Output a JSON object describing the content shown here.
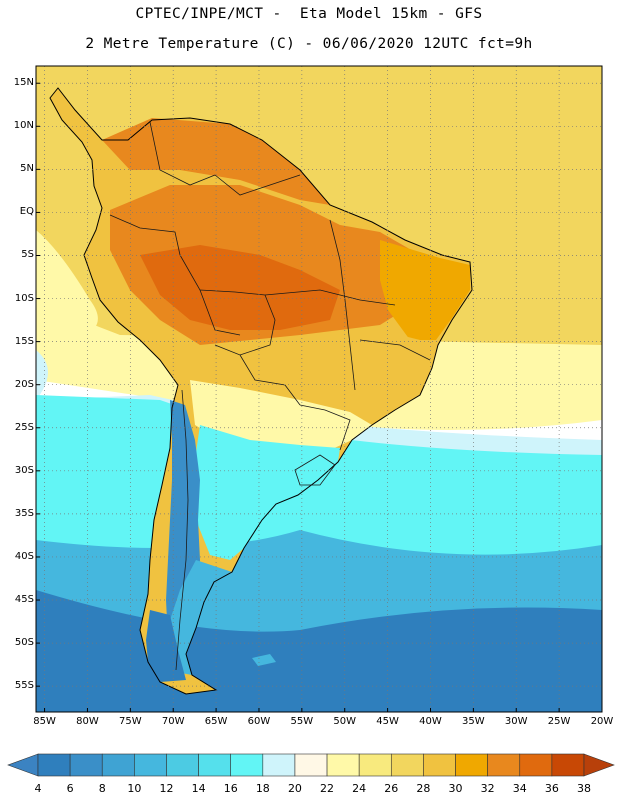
{
  "title": {
    "line1": "CPTEC/INPE/MCT -  Eta Model 15km - GFS",
    "line2": "2 Metre Temperature (C) - 06/06/2020 12UTC fct=9h"
  },
  "map": {
    "variable": "2 Metre Temperature",
    "units": "C",
    "region": "South America",
    "lat_range_deg": [
      -58,
      17
    ],
    "lon_range_deg": [
      -86,
      -20
    ],
    "grid": "dotted"
  },
  "lat_labels": [
    "15N",
    "10N",
    "5N",
    "EQ",
    "5S",
    "10S",
    "15S",
    "20S",
    "25S",
    "30S",
    "35S",
    "40S",
    "45S",
    "50S",
    "55S"
  ],
  "lat_values": [
    15,
    10,
    5,
    0,
    -5,
    -10,
    -15,
    -20,
    -25,
    -30,
    -35,
    -40,
    -45,
    -50,
    -55
  ],
  "lon_labels": [
    "85W",
    "80W",
    "75W",
    "70W",
    "65W",
    "60W",
    "55W",
    "50W",
    "45W",
    "40W",
    "35W",
    "30W",
    "25W",
    "20W"
  ],
  "lon_values": [
    -85,
    -80,
    -75,
    -70,
    -65,
    -60,
    -55,
    -50,
    -45,
    -40,
    -35,
    -30,
    -25,
    -20
  ],
  "colorbar": {
    "labels": [
      "4",
      "6",
      "8",
      "10",
      "12",
      "14",
      "16",
      "18",
      "20",
      "22",
      "24",
      "26",
      "28",
      "30",
      "32",
      "34",
      "36",
      "38"
    ],
    "colors": [
      "#3b83c2",
      "#2f7fbd",
      "#3a8fc8",
      "#3fa3d3",
      "#45b7de",
      "#4ccbe3",
      "#55e0ec",
      "#62f5f5",
      "#cff4fb",
      "#fff8e6",
      "#fff9a8",
      "#f8ea7e",
      "#f2d65e",
      "#f0c240",
      "#f0a800",
      "#e8881e",
      "#e06a0e",
      "#c84805",
      "#b8400a"
    ]
  },
  "fields": {
    "ocean_bands": [
      {
        "name": "tropical-atlantic",
        "color": "#f2d65e"
      },
      {
        "name": "warm-band",
        "color": "#fff9a8"
      },
      {
        "name": "transition",
        "color": "#cff4fb"
      },
      {
        "name": "subtropical",
        "color": "#62f5f5"
      },
      {
        "name": "midlat",
        "color": "#45b7de"
      },
      {
        "name": "subpolar",
        "color": "#2f7fbd"
      }
    ],
    "land": {
      "amazon": "#e8881e",
      "hot_core": "#e06a0e",
      "northeast": "#f0a800",
      "central": "#f0c240",
      "south": "#fff9a8",
      "pampas": "#62f5f5",
      "andes_high": "#3a8fc8",
      "patagonia": "#45b7de",
      "patagonia_cold": "#2f7fbd"
    },
    "coastline_color": "#000000",
    "border_color": "#1a1a1a"
  }
}
